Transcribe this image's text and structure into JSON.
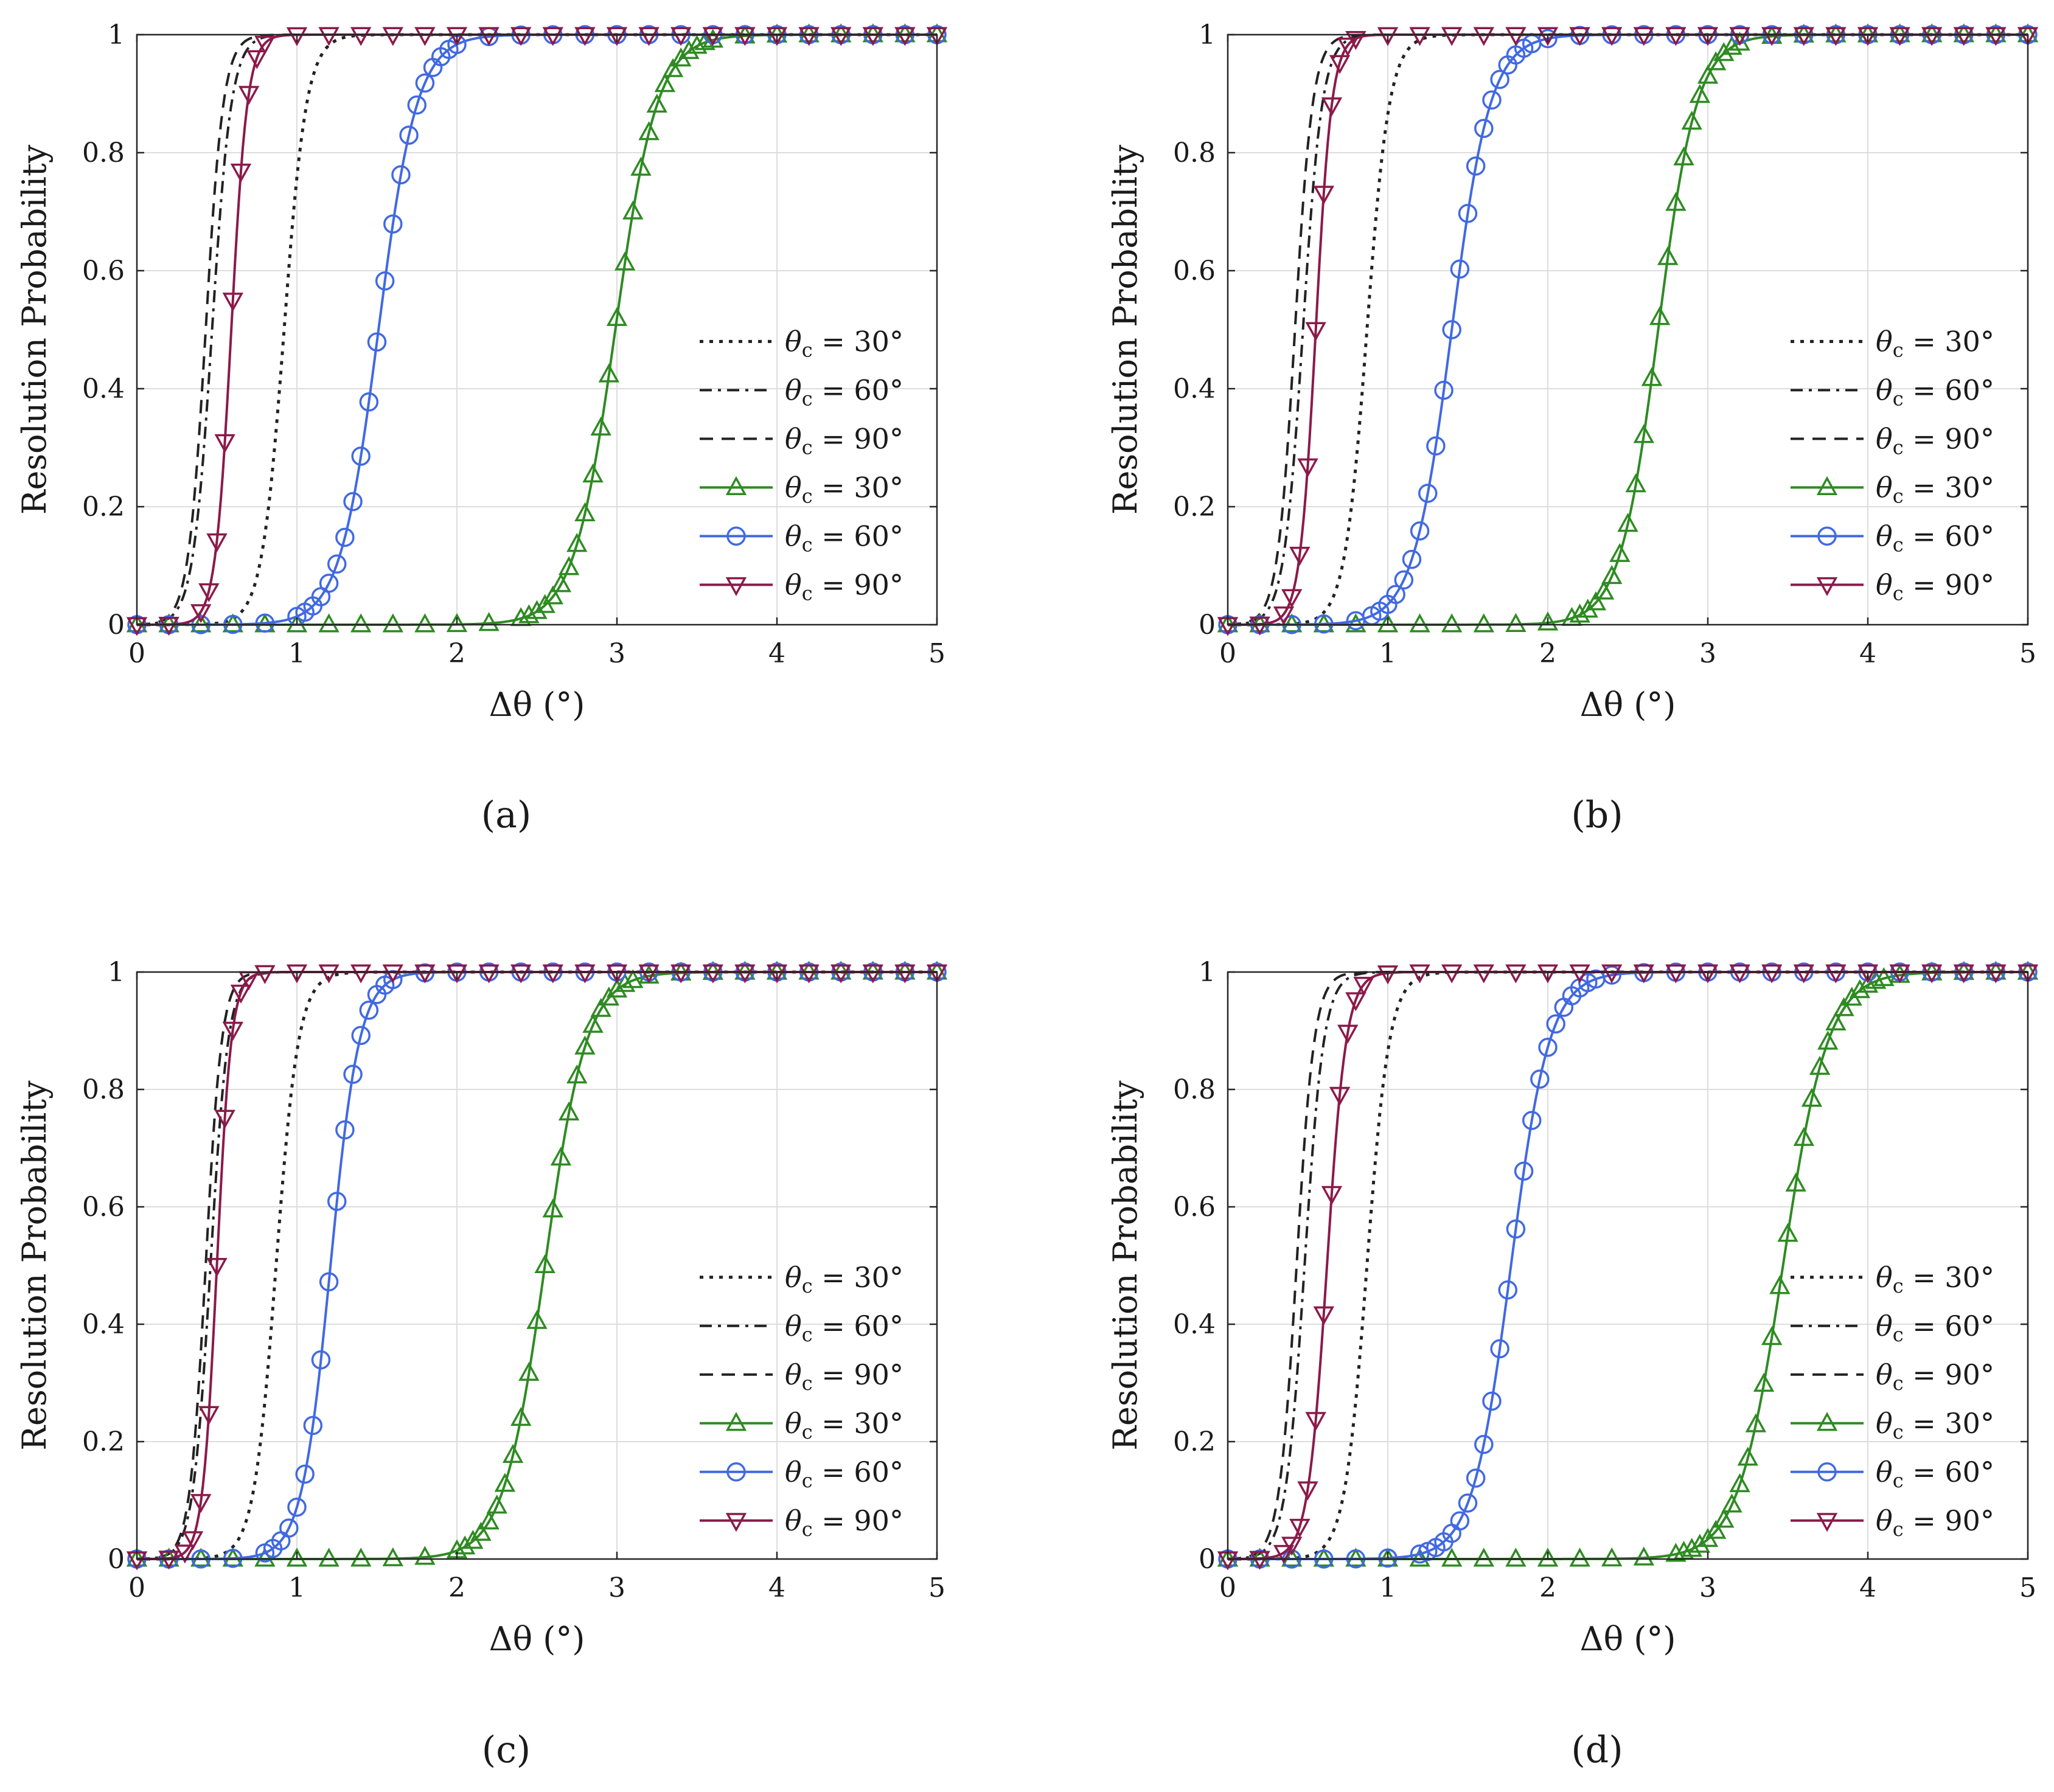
{
  "figure": {
    "x_axis_label": "Δθ (°)",
    "y_axis_label": "Resolution Probability",
    "x_ticks": [
      "0",
      "1",
      "2",
      "3",
      "4",
      "5"
    ],
    "y_ticks": [
      "0",
      "0.2",
      "0.4",
      "0.6",
      "0.8",
      "1"
    ]
  },
  "legend_entries": [
    {
      "symbol": "θ",
      "subscript": "c",
      "text": " = 30°",
      "style": "dotted",
      "color": "#222222",
      "marker": "none"
    },
    {
      "symbol": "θ",
      "subscript": "c",
      "text": " = 60°",
      "style": "dashdot",
      "color": "#222222",
      "marker": "none"
    },
    {
      "symbol": "θ",
      "subscript": "c",
      "text": " = 90°",
      "style": "dashed",
      "color": "#222222",
      "marker": "none"
    },
    {
      "symbol": "θ",
      "subscript": "c",
      "text": " = 30°",
      "style": "solid",
      "color": "#2e8b22",
      "marker": "triangle-up"
    },
    {
      "symbol": "θ",
      "subscript": "c",
      "text": " = 60°",
      "style": "solid",
      "color": "#4169e1",
      "marker": "circle"
    },
    {
      "symbol": "θ",
      "subscript": "c",
      "text": " = 90°",
      "style": "solid",
      "color": "#8b1a4a",
      "marker": "triangle-down"
    }
  ],
  "chart_data": [
    {
      "type": "line",
      "panel_label": "(a)",
      "xlabel": "Δθ (°)",
      "ylabel": "Resolution Probability",
      "xlim": [
        0,
        5
      ],
      "ylim": [
        0,
        1
      ],
      "grid": true,
      "legend": "center-right",
      "series": [
        {
          "name": "θc = 30° (dotted)",
          "midpoint": 0.92,
          "width": 0.07
        },
        {
          "name": "θc = 60° (dashdot)",
          "midpoint": 0.47,
          "width": 0.06
        },
        {
          "name": "θc = 90° (dashed)",
          "midpoint": 0.43,
          "width": 0.055
        },
        {
          "name": "θc = 30° (triangle-up)",
          "midpoint": 2.99,
          "width": 0.13
        },
        {
          "name": "θc = 60° (circle)",
          "midpoint": 1.51,
          "width": 0.12
        },
        {
          "name": "θc = 90° (triangle-down)",
          "midpoint": 0.59,
          "width": 0.05
        }
      ]
    },
    {
      "type": "line",
      "panel_label": "(b)",
      "xlabel": "Δθ (°)",
      "ylabel": "Resolution Probability",
      "xlim": [
        0,
        5
      ],
      "ylim": [
        0,
        1
      ],
      "grid": true,
      "legend": "center-right",
      "series": [
        {
          "name": "θc = 30° (dotted)",
          "midpoint": 0.87,
          "width": 0.07
        },
        {
          "name": "θc = 60° (dashdot)",
          "midpoint": 0.47,
          "width": 0.06
        },
        {
          "name": "θc = 90° (dashed)",
          "midpoint": 0.42,
          "width": 0.055
        },
        {
          "name": "θc = 30° (triangle-up)",
          "midpoint": 2.69,
          "width": 0.12
        },
        {
          "name": "θc = 60° (circle)",
          "midpoint": 1.4,
          "width": 0.12
        },
        {
          "name": "θc = 90° (triangle-down)",
          "midpoint": 0.55,
          "width": 0.05
        }
      ]
    },
    {
      "type": "line",
      "panel_label": "(c)",
      "xlabel": "Δθ (°)",
      "ylabel": "Resolution Probability",
      "xlim": [
        0,
        5
      ],
      "ylim": [
        0,
        1
      ],
      "grid": true,
      "legend": "center-right",
      "series": [
        {
          "name": "θc = 30° (dotted)",
          "midpoint": 0.87,
          "width": 0.07
        },
        {
          "name": "θc = 60° (dashdot)",
          "midpoint": 0.46,
          "width": 0.055
        },
        {
          "name": "θc = 90° (dashed)",
          "midpoint": 0.43,
          "width": 0.05
        },
        {
          "name": "θc = 30° (triangle-up)",
          "midpoint": 2.55,
          "width": 0.13
        },
        {
          "name": "θc = 60° (circle)",
          "midpoint": 1.21,
          "width": 0.09
        },
        {
          "name": "θc = 90° (triangle-down)",
          "midpoint": 0.5,
          "width": 0.045
        }
      ]
    },
    {
      "type": "line",
      "panel_label": "(d)",
      "xlabel": "Δθ (°)",
      "ylabel": "Resolution Probability",
      "xlim": [
        0,
        5
      ],
      "ylim": [
        0,
        1
      ],
      "grid": true,
      "legend": "center-right",
      "series": [
        {
          "name": "θc = 30° (dotted)",
          "midpoint": 0.87,
          "width": 0.07
        },
        {
          "name": "θc = 60° (dashdot)",
          "midpoint": 0.48,
          "width": 0.06
        },
        {
          "name": "θc = 90° (dashed)",
          "midpoint": 0.43,
          "width": 0.055
        },
        {
          "name": "θc = 30° (triangle-up)",
          "midpoint": 3.47,
          "width": 0.14
        },
        {
          "name": "θc = 60° (circle)",
          "midpoint": 1.77,
          "width": 0.12
        },
        {
          "name": "θc = 90° (triangle-down)",
          "midpoint": 0.62,
          "width": 0.06
        }
      ]
    }
  ]
}
